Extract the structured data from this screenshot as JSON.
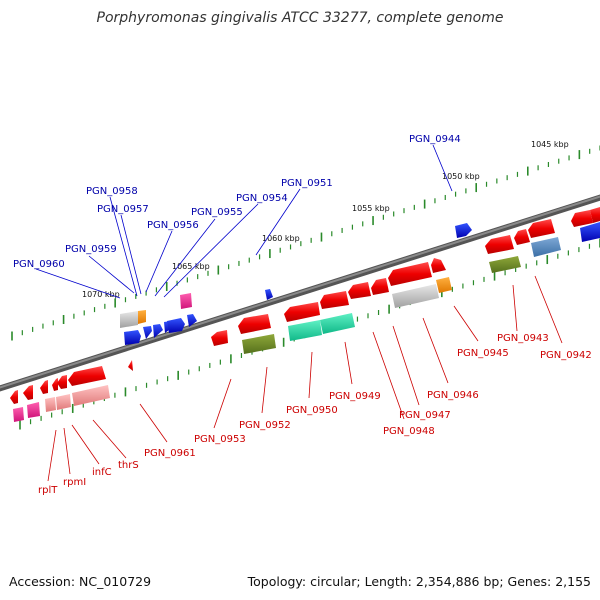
{
  "title": "Porphyromonas gingivalis ATCC 33277, complete genome",
  "footer": {
    "accession": "Accession: NC_010729",
    "summary": "Topology: circular; Length: 2,354,886 bp; Genes: 2,155"
  },
  "scale_labels": [
    "1045 kbp",
    "1050 kbp",
    "1055 kbp",
    "1060 kbp",
    "1065 kbp",
    "1070 kbp"
  ],
  "gene_labels_forward": [
    "PGN_0944",
    "PGN_0951",
    "PGN_0954",
    "PGN_0955",
    "PGN_0956",
    "PGN_0957",
    "PGN_0958",
    "PGN_0959",
    "PGN_0960"
  ],
  "gene_labels_reverse": [
    "PGN_0942",
    "PGN_0943",
    "PGN_0945",
    "PGN_0946",
    "PGN_0947",
    "PGN_0948",
    "PGN_0949",
    "PGN_0950",
    "PGN_0952",
    "PGN_0953",
    "PGN_0961",
    "thrS",
    "infC",
    "rpmI",
    "rplT"
  ],
  "colors": {
    "forward_label": "#0000aa",
    "reverse_label": "#cc0000",
    "backbone": "#6e6e6e",
    "tick": "#2a8a2a",
    "cds_forward": "#0000dd",
    "cds_reverse": "#ee0000"
  }
}
